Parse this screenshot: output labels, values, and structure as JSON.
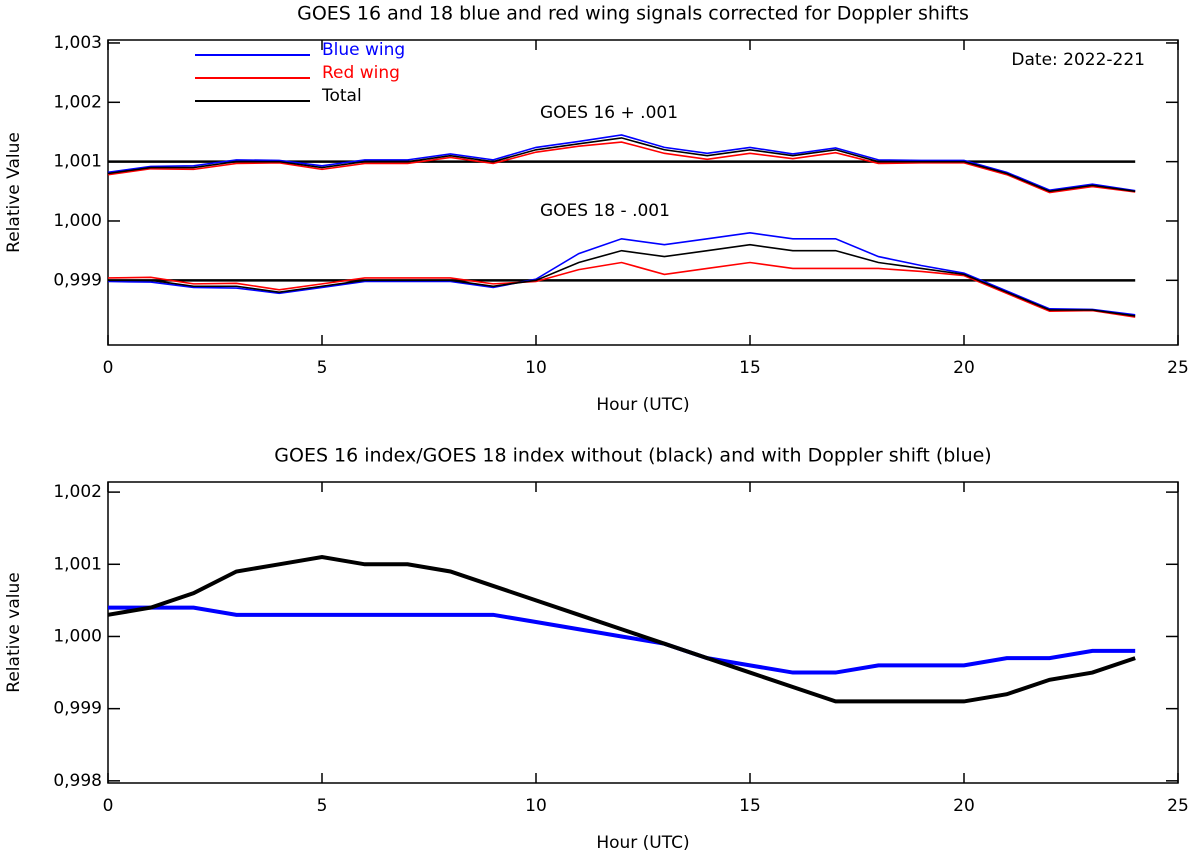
{
  "chart_data": [
    {
      "type": "line",
      "title": "GOES 16 and 18 blue and red wing signals corrected for Doppler shifts",
      "xlabel": "Hour (UTC)",
      "ylabel": "Relative Value",
      "xlim": [
        0,
        25
      ],
      "xticks": [
        0,
        5,
        10,
        15,
        20,
        25
      ],
      "ylim": [
        0.99791,
        1.00305
      ],
      "yticks": [
        {
          "value": 0.999,
          "label": "0,999"
        },
        {
          "value": 1.0,
          "label": "1,000"
        },
        {
          "value": 1.001,
          "label": "1,001"
        },
        {
          "value": 1.002,
          "label": "1,002"
        },
        {
          "value": 1.003,
          "label": "1,003"
        }
      ],
      "date": "Date: 2022-221",
      "legend": [
        {
          "name": "Blue wing",
          "color": "#0000ff"
        },
        {
          "name": "Red wing",
          "color": "#ff0000"
        },
        {
          "name": "Total",
          "color": "#000000"
        }
      ],
      "reference_lines": [
        1.001,
        0.999
      ],
      "x": [
        0,
        1,
        2,
        3,
        4,
        5,
        6,
        7,
        8,
        9,
        10,
        11,
        12,
        13,
        14,
        15,
        16,
        17,
        18,
        19,
        20,
        21,
        22,
        23,
        24
      ],
      "groups": [
        {
          "annotation": "GOES 16 + .001",
          "series": [
            {
              "color": "#0000ff",
              "values": [
                1.00082,
                1.00092,
                1.00093,
                1.00103,
                1.00102,
                1.00093,
                1.00103,
                1.00103,
                1.00113,
                1.00103,
                1.00124,
                1.00134,
                1.00145,
                1.00124,
                1.00114,
                1.00124,
                1.00113,
                1.00123,
                1.00103,
                1.00102,
                1.00102,
                1.00082,
                1.00052,
                1.00062,
                1.00051
              ]
            },
            {
              "color": "#ff0000",
              "values": [
                1.00078,
                1.00088,
                1.00087,
                1.00097,
                1.00098,
                1.00087,
                1.00097,
                1.00097,
                1.00107,
                1.00097,
                1.00116,
                1.00126,
                1.00133,
                1.00114,
                1.00104,
                1.00114,
                1.00105,
                1.00115,
                1.00097,
                1.00098,
                1.00098,
                1.00078,
                1.00048,
                1.00058,
                1.00049
              ]
            },
            {
              "color": "#000000",
              "values": [
                1.0008,
                1.0009,
                1.0009,
                1.001,
                1.001,
                1.0009,
                1.001,
                1.001,
                1.0011,
                1.001,
                1.0012,
                1.0013,
                1.0014,
                1.0012,
                1.0011,
                1.0012,
                1.0011,
                1.0012,
                1.001,
                1.001,
                1.001,
                1.0008,
                1.0005,
                1.0006,
                1.0005
              ]
            }
          ]
        },
        {
          "annotation": "GOES 18 - .001",
          "series": [
            {
              "color": "#0000ff",
              "values": [
                0.99898,
                0.99897,
                0.99888,
                0.99887,
                0.99878,
                0.99888,
                0.99898,
                0.99898,
                0.99898,
                0.99888,
                0.99902,
                0.99945,
                0.9997,
                0.9996,
                0.9997,
                0.9998,
                0.9997,
                0.9997,
                0.9994,
                0.99925,
                0.99912,
                0.99882,
                0.99852,
                0.99851,
                0.99842
              ]
            },
            {
              "color": "#ff0000",
              "values": [
                0.99904,
                0.99905,
                0.99894,
                0.99895,
                0.99884,
                0.99894,
                0.99904,
                0.99904,
                0.99904,
                0.99894,
                0.99898,
                0.99918,
                0.9993,
                0.9991,
                0.9992,
                0.9993,
                0.9992,
                0.9992,
                0.9992,
                0.99915,
                0.99908,
                0.99878,
                0.99848,
                0.99849,
                0.99838
              ]
            },
            {
              "color": "#000000",
              "values": [
                0.999,
                0.999,
                0.9989,
                0.9989,
                0.9988,
                0.9989,
                0.999,
                0.999,
                0.999,
                0.9989,
                0.999,
                0.9993,
                0.9995,
                0.9994,
                0.9995,
                0.9996,
                0.9995,
                0.9995,
                0.9993,
                0.9992,
                0.9991,
                0.9988,
                0.9985,
                0.9985,
                0.9984
              ]
            }
          ]
        }
      ]
    },
    {
      "type": "line",
      "title": "GOES 16 index/GOES 18 index without (black) and with Doppler shift (blue)",
      "xlabel": "Hour (UTC)",
      "ylabel": "Relative value",
      "xlim": [
        0,
        25
      ],
      "xticks": [
        0,
        5,
        10,
        15,
        20,
        25
      ],
      "ylim": [
        0.99797,
        1.00214
      ],
      "yticks": [
        {
          "value": 0.998,
          "label": "0,998"
        },
        {
          "value": 0.999,
          "label": "0,999"
        },
        {
          "value": 1.0,
          "label": "1,000"
        },
        {
          "value": 1.001,
          "label": "1,001"
        },
        {
          "value": 1.002,
          "label": "1,002"
        }
      ],
      "x": [
        0,
        1,
        2,
        3,
        4,
        5,
        6,
        7,
        8,
        9,
        10,
        11,
        12,
        13,
        14,
        15,
        16,
        17,
        18,
        19,
        20,
        21,
        22,
        23,
        24
      ],
      "groups": [
        {
          "series": [
            {
              "color": "#0000ff",
              "values": [
                1.0004,
                1.0004,
                1.0004,
                1.0003,
                1.0003,
                1.0003,
                1.0003,
                1.0003,
                1.0003,
                1.0003,
                1.0002,
                1.0001,
                1.0,
                0.9999,
                0.9997,
                0.9996,
                0.9995,
                0.9995,
                0.9996,
                0.9996,
                0.9996,
                0.9997,
                0.9997,
                0.9998,
                0.9998
              ]
            },
            {
              "color": "#000000",
              "values": [
                1.0003,
                1.0004,
                1.0006,
                1.0009,
                1.001,
                1.0011,
                1.001,
                1.001,
                1.0009,
                1.0007,
                1.0005,
                1.0003,
                1.0001,
                0.9999,
                0.9997,
                0.9995,
                0.9993,
                0.9991,
                0.9991,
                0.9991,
                0.9991,
                0.9992,
                0.9994,
                0.9995,
                0.9997
              ]
            }
          ]
        }
      ]
    }
  ]
}
